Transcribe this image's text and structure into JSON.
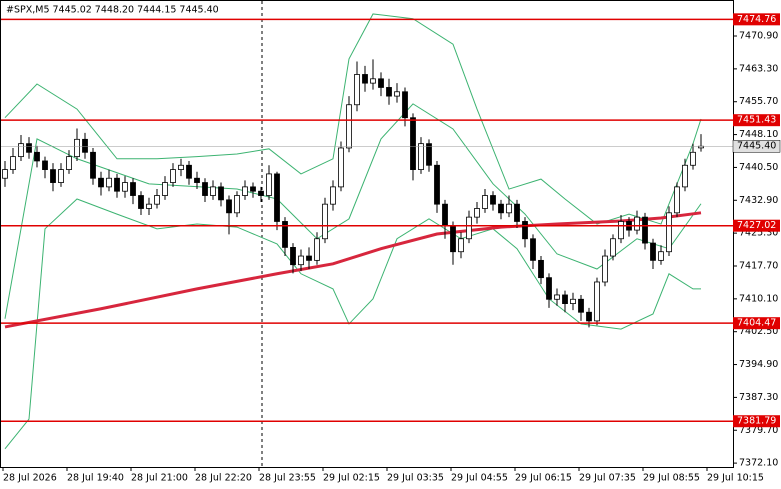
{
  "chart_data": {
    "type": "candlestick",
    "title": "#SPX,M5  7445.02 7448.20 7444.15 7445.40",
    "x_labels": [
      "28 Jul 2026",
      "28 Jul 19:40",
      "28 Jul 21:00",
      "28 Jul 22:20",
      "28 Jul 23:55",
      "29 Jul 02:15",
      "29 Jul 03:35",
      "29 Jul 04:55",
      "29 Jul 06:15",
      "29 Jul 07:35",
      "29 Jul 08:55",
      "29 Jul 10:15"
    ],
    "ylim": [
      7371.2,
      7479.0
    ],
    "yticks": [
      {
        "value": 7470.9,
        "label": "7470.90"
      },
      {
        "value": 7463.3,
        "label": "7463.30"
      },
      {
        "value": 7455.7,
        "label": "7455.70"
      },
      {
        "value": 7448.1,
        "label": "7448.10"
      },
      {
        "value": 7440.5,
        "label": "7440.50"
      },
      {
        "value": 7432.9,
        "label": "7432.90"
      },
      {
        "value": 7425.3,
        "label": "7425.30"
      },
      {
        "value": 7417.7,
        "label": "7417.70"
      },
      {
        "value": 7410.1,
        "label": "7410.10"
      },
      {
        "value": 7402.5,
        "label": "7402.50"
      },
      {
        "value": 7394.9,
        "label": "7394.90"
      },
      {
        "value": 7387.3,
        "label": "7387.30"
      },
      {
        "value": 7379.7,
        "label": "7379.70"
      },
      {
        "value": 7372.1,
        "label": "7372.10"
      }
    ],
    "levels": [
      7474.76,
      7451.43,
      7427.02,
      7404.47,
      7381.79
    ],
    "level_color": "#e00000",
    "last": {
      "value": 7445.4,
      "label": "7445.40"
    },
    "candles": [
      [
        7438,
        7442,
        7436,
        7440
      ],
      [
        7440,
        7445,
        7439,
        7443
      ],
      [
        7443,
        7448,
        7442,
        7446
      ],
      [
        7446,
        7447.5,
        7442.5,
        7444
      ],
      [
        7444,
        7445.5,
        7440.5,
        7442
      ],
      [
        7442,
        7443,
        7438,
        7440
      ],
      [
        7440,
        7441.5,
        7435,
        7437
      ],
      [
        7437,
        7441.5,
        7436,
        7440
      ],
      [
        7440,
        7444.5,
        7439,
        7443
      ],
      [
        7443,
        7449.5,
        7442,
        7447
      ],
      [
        7447,
        7448.5,
        7442.5,
        7444
      ],
      [
        7444,
        7445,
        7436.5,
        7438
      ],
      [
        7438,
        7439.5,
        7434,
        7436
      ],
      [
        7436,
        7440,
        7435,
        7438
      ],
      [
        7438,
        7439,
        7433.5,
        7435
      ],
      [
        7435,
        7438.5,
        7433.5,
        7437
      ],
      [
        7437,
        7438,
        7432,
        7434
      ],
      [
        7434,
        7435,
        7429.5,
        7431
      ],
      [
        7431,
        7433.5,
        7429.5,
        7432
      ],
      [
        7432,
        7435.5,
        7431,
        7434
      ],
      [
        7434,
        7438.5,
        7433,
        7437
      ],
      [
        7437,
        7441.5,
        7436,
        7440
      ],
      [
        7440,
        7442.5,
        7438.5,
        7441
      ],
      [
        7441,
        7442,
        7436.5,
        7438
      ],
      [
        7438,
        7439.5,
        7435.5,
        7437
      ],
      [
        7437,
        7438,
        7432.5,
        7434
      ],
      [
        7434,
        7437.5,
        7433,
        7436
      ],
      [
        7436,
        7437,
        7431.5,
        7433
      ],
      [
        7433,
        7434,
        7425,
        7430
      ],
      [
        7430,
        7435,
        7429,
        7434
      ],
      [
        7434,
        7437.5,
        7433,
        7436
      ],
      [
        7436,
        7437,
        7433.5,
        7435
      ],
      [
        7435,
        7436,
        7432.5,
        7434
      ],
      [
        7434,
        7441,
        7433,
        7439
      ],
      [
        7439,
        7439.5,
        7426,
        7428
      ],
      [
        7428,
        7429,
        7420,
        7422
      ],
      [
        7422,
        7423,
        7416,
        7418
      ],
      [
        7418,
        7421.5,
        7416.5,
        7420
      ],
      [
        7420,
        7422,
        7417,
        7419
      ],
      [
        7419,
        7425.5,
        7418,
        7424
      ],
      [
        7424,
        7433.5,
        7423,
        7432
      ],
      [
        7432,
        7437.5,
        7430.5,
        7436
      ],
      [
        7436,
        7446.5,
        7435,
        7445
      ],
      [
        7445,
        7457,
        7444,
        7455
      ],
      [
        7455,
        7465,
        7453.5,
        7462
      ],
      [
        7462,
        7464,
        7458,
        7460
      ],
      [
        7460,
        7465.5,
        7458.5,
        7461
      ],
      [
        7461,
        7462.5,
        7457,
        7459
      ],
      [
        7459,
        7461,
        7455,
        7457
      ],
      [
        7457,
        7460,
        7455.5,
        7458
      ],
      [
        7458,
        7459,
        7450,
        7452
      ],
      [
        7452,
        7453,
        7437.5,
        7440
      ],
      [
        7440,
        7447.5,
        7439,
        7446
      ],
      [
        7446,
        7447,
        7439.5,
        7441
      ],
      [
        7441,
        7442,
        7430,
        7432
      ],
      [
        7432,
        7433,
        7424,
        7427
      ],
      [
        7427,
        7428,
        7418,
        7421
      ],
      [
        7421,
        7425.5,
        7419.5,
        7424
      ],
      [
        7424,
        7430.5,
        7423,
        7429
      ],
      [
        7429,
        7432.5,
        7427.5,
        7431
      ],
      [
        7431,
        7435.5,
        7430,
        7434
      ],
      [
        7434,
        7435,
        7430.5,
        7432
      ],
      [
        7432,
        7433,
        7428.5,
        7430
      ],
      [
        7430,
        7434,
        7429,
        7432
      ],
      [
        7432,
        7433,
        7426.5,
        7428
      ],
      [
        7428,
        7429,
        7422,
        7424
      ],
      [
        7424,
        7425,
        7417,
        7419
      ],
      [
        7419,
        7420,
        7413.5,
        7415
      ],
      [
        7415,
        7416,
        7408,
        7410
      ],
      [
        7410,
        7412.5,
        7408.5,
        7411
      ],
      [
        7411,
        7412,
        7407,
        7409
      ],
      [
        7409,
        7411.5,
        7407.5,
        7410
      ],
      [
        7410,
        7411,
        7405,
        7407
      ],
      [
        7407,
        7408,
        7403.5,
        7405
      ],
      [
        7405,
        7415,
        7404,
        7414
      ],
      [
        7414,
        7421.5,
        7413,
        7420
      ],
      [
        7420,
        7425,
        7419,
        7424
      ],
      [
        7424,
        7429.5,
        7423,
        7428
      ],
      [
        7428,
        7429,
        7424.5,
        7426
      ],
      [
        7426,
        7430.5,
        7425,
        7429
      ],
      [
        7429,
        7430,
        7421.5,
        7423
      ],
      [
        7423,
        7424,
        7417,
        7419
      ],
      [
        7419,
        7422.5,
        7418,
        7421
      ],
      [
        7421,
        7431.5,
        7420,
        7430
      ],
      [
        7430,
        7437,
        7429,
        7436
      ],
      [
        7436,
        7442.5,
        7435,
        7441
      ],
      [
        7441,
        7446,
        7440,
        7444
      ],
      [
        7445.02,
        7448.2,
        7444.15,
        7445.4
      ]
    ],
    "lines": [
      {
        "color": "#3cb371",
        "width": 1,
        "x": [
          0,
          4,
          9,
          14,
          19,
          24,
          29,
          33,
          37,
          41,
          43,
          46,
          51,
          56,
          59,
          63,
          67,
          70,
          74,
          78,
          82,
          86,
          87
        ],
        "values": [
          7452,
          7459.8,
          7454,
          7442.5,
          7442.5,
          7443,
          7443.6,
          7444.8,
          7439,
          7442.5,
          7465.6,
          7476,
          7474.9,
          7469,
          7454,
          7435.5,
          7437.8,
          7433.2,
          7427.4,
          7429.7,
          7427.4,
          7446,
          7451.7
        ]
      },
      {
        "color": "#3cb371",
        "width": 1,
        "x": [
          0,
          3,
          5,
          9,
          14,
          19,
          24,
          29,
          34,
          37,
          41,
          43,
          46,
          49,
          53,
          57,
          61,
          64,
          68,
          72,
          77,
          81,
          83,
          86,
          87
        ],
        "values": [
          7375.4,
          7382.3,
          7426.3,
          7433.2,
          7429.7,
          7426.3,
          7427.4,
          7426.7,
          7422.8,
          7415.9,
          7412.4,
          7404.3,
          7410.1,
          7424,
          7428.6,
          7424,
          7426.3,
          7421.7,
          7410.1,
          7404.3,
          7403.1,
          7406.6,
          7415.9,
          7412.4,
          7412.4
        ]
      },
      {
        "color": "#3cb371",
        "width": 1,
        "x": [
          0,
          4,
          9,
          18,
          29,
          34,
          39,
          43,
          47,
          51,
          56,
          61,
          65,
          69,
          74,
          79,
          83,
          87
        ],
        "values": [
          7405.5,
          7447.1,
          7442.5,
          7436.7,
          7435.5,
          7433.2,
          7424,
          7428.6,
          7447.1,
          7455.2,
          7449.4,
          7436.7,
          7429.7,
          7420.5,
          7417,
          7424,
          7421.7,
          7432.1
        ]
      },
      {
        "color": "#d7263d",
        "width": 3,
        "x": [
          0,
          12,
          24,
          34,
          41,
          47,
          54,
          62,
          69,
          77,
          82,
          87
        ],
        "values": [
          7403.6,
          7407.8,
          7412.4,
          7415.9,
          7418.2,
          7421.7,
          7425.1,
          7426.7,
          7427.4,
          7428.1,
          7428.8,
          7430
        ]
      }
    ]
  }
}
